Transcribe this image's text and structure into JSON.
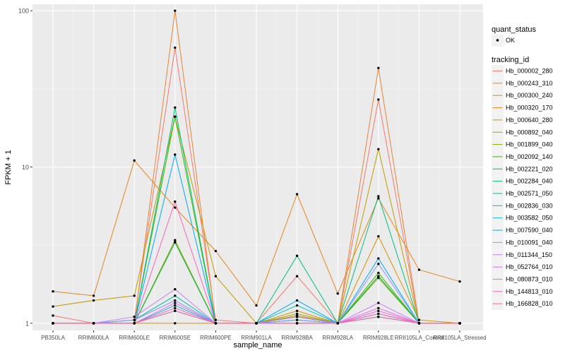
{
  "chart_data": {
    "type": "line",
    "title": "",
    "xlabel": "sample_name",
    "ylabel": "FPKM + 1",
    "y_scale": "log10",
    "ylim": [
      0.9,
      110
    ],
    "y_ticks": [
      1,
      10,
      100
    ],
    "y_tick_labels": [
      "1",
      "10",
      "100"
    ],
    "categories": [
      "PB350LA",
      "RRIM600LA",
      "RRIM600LE",
      "RRIM600SE",
      "RRIM600PE",
      "RRIM901LA",
      "RRIM928BA",
      "RRIM928LA",
      "RRIM928LE",
      "RRII105LA_Control",
      "RRII105LA_Stressed"
    ],
    "x_tick_labels": [
      "PB350LA",
      "RRIM600LA",
      "RRIM600LE",
      "RRIM600SE",
      "RRIM600PE",
      "RRIM901LA",
      "RRIM928BA",
      "RRIM928LA",
      "RRIM928LE",
      "RRII105LA_Control",
      "RRII105LA_Stressed"
    ],
    "grid": true,
    "legend": {
      "placement": "right",
      "shape_title": "quant_status",
      "shape_entries": [
        "OK"
      ],
      "color_title": "tracking_id"
    },
    "series": [
      {
        "name": "Hb_000002_280",
        "color": "#F8766D",
        "values": [
          1.12,
          1.0,
          1.05,
          58,
          1.05,
          1.0,
          2.0,
          1.0,
          27,
          1.0,
          1.0
        ]
      },
      {
        "name": "Hb_000243_310",
        "color": "#EA8331",
        "values": [
          1.0,
          1.0,
          1.0,
          100,
          1.0,
          1.0,
          1.0,
          1.0,
          43,
          1.0,
          1.0
        ]
      },
      {
        "name": "Hb_000300_240",
        "color": "#D89000",
        "values": [
          1.0,
          1.0,
          1.0,
          1.0,
          1.0,
          1.0,
          1.2,
          1.0,
          3.6,
          1.05,
          1.0
        ]
      },
      {
        "name": "Hb_000320_170",
        "color": "#E7861B",
        "values": [
          1.6,
          1.5,
          11,
          5.5,
          2.9,
          1.3,
          6.7,
          1.55,
          6.3,
          2.2,
          1.85
        ]
      },
      {
        "name": "Hb_000640_280",
        "color": "#C09B00",
        "values": [
          1.28,
          1.4,
          1.5,
          21,
          2.0,
          1.0,
          1.12,
          1.0,
          13,
          1.0,
          1.0
        ]
      },
      {
        "name": "Hb_000892_040",
        "color": "#A3A500",
        "values": [
          1.0,
          1.0,
          1.0,
          3.4,
          1.0,
          1.0,
          1.15,
          1.0,
          2.0,
          1.0,
          1.0
        ]
      },
      {
        "name": "Hb_001899_040",
        "color": "#7CAE00",
        "values": [
          1.0,
          1.0,
          1.0,
          3.3,
          1.0,
          1.0,
          1.1,
          1.0,
          1.95,
          1.0,
          1.0
        ]
      },
      {
        "name": "Hb_002092_140",
        "color": "#39B600",
        "values": [
          1.0,
          1.0,
          1.0,
          21,
          1.0,
          1.0,
          1.0,
          1.0,
          2.1,
          1.0,
          1.0
        ]
      },
      {
        "name": "Hb_002221_020",
        "color": "#00BB4E",
        "values": [
          1.0,
          1.0,
          1.0,
          3.3,
          1.0,
          1.0,
          1.1,
          1.0,
          2.0,
          1.0,
          1.0
        ]
      },
      {
        "name": "Hb_002284_040",
        "color": "#00BF7D",
        "values": [
          1.0,
          1.0,
          1.0,
          24,
          1.0,
          1.0,
          2.7,
          1.0,
          6.5,
          1.0,
          1.0
        ]
      },
      {
        "name": "Hb_002571_050",
        "color": "#00C1A3",
        "values": [
          1.0,
          1.0,
          1.05,
          1.5,
          1.0,
          1.0,
          1.05,
          1.0,
          1.1,
          1.0,
          1.0
        ]
      },
      {
        "name": "Hb_002836_030",
        "color": "#00BFC4",
        "values": [
          1.0,
          1.0,
          1.0,
          1.3,
          1.0,
          1.0,
          1.3,
          1.0,
          1.15,
          1.0,
          1.0
        ]
      },
      {
        "name": "Hb_003582_050",
        "color": "#00B8E5",
        "values": [
          1.0,
          1.0,
          1.0,
          1.2,
          1.0,
          1.0,
          1.05,
          1.0,
          1.1,
          1.0,
          1.0
        ]
      },
      {
        "name": "Hb_007590_040",
        "color": "#00A9FF",
        "values": [
          1.0,
          1.0,
          1.0,
          12,
          1.0,
          1.0,
          1.4,
          1.0,
          2.6,
          1.0,
          1.0
        ]
      },
      {
        "name": "Hb_010091_040",
        "color": "#8B93FF",
        "values": [
          1.0,
          1.0,
          1.05,
          1.4,
          1.0,
          1.0,
          1.05,
          1.0,
          2.4,
          1.0,
          1.0
        ]
      },
      {
        "name": "Hb_011344_150",
        "color": "#C77CFF",
        "values": [
          1.0,
          1.0,
          1.1,
          1.65,
          1.0,
          1.0,
          1.1,
          1.0,
          1.35,
          1.0,
          1.0
        ]
      },
      {
        "name": "Hb_052764_010",
        "color": "#E76BF3",
        "values": [
          1.0,
          1.0,
          1.0,
          1.35,
          1.0,
          1.0,
          1.0,
          1.0,
          1.25,
          1.0,
          1.0
        ]
      },
      {
        "name": "Hb_080873_010",
        "color": "#FA62DB",
        "values": [
          1.0,
          1.0,
          1.0,
          1.25,
          1.0,
          1.0,
          1.0,
          1.0,
          1.2,
          1.0,
          1.0
        ]
      },
      {
        "name": "Hb_144813_010",
        "color": "#FF62BC",
        "values": [
          1.0,
          1.0,
          1.0,
          6.0,
          1.0,
          1.0,
          1.0,
          1.0,
          1.15,
          1.0,
          1.0
        ]
      },
      {
        "name": "Hb_166828_010",
        "color": "#FF6C91",
        "values": [
          1.0,
          1.0,
          1.0,
          1.2,
          1.0,
          1.0,
          1.0,
          1.0,
          1.1,
          1.0,
          1.0
        ]
      }
    ]
  }
}
